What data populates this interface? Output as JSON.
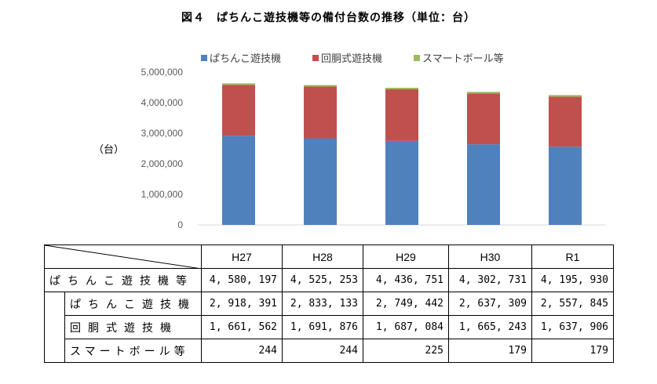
{
  "title": "図４　ぱちんこ遊技機等の備付台数の推移（単位：台）",
  "chart_data": {
    "type": "bar",
    "stacked": true,
    "categories": [
      "H27",
      "H28",
      "H29",
      "H30",
      "R1"
    ],
    "series": [
      {
        "name": "ぱちんこ遊技機",
        "color": "#4F81BD",
        "values": [
          2918391,
          2833133,
          2749442,
          2637309,
          2557845
        ]
      },
      {
        "name": "回胴式遊技機",
        "color": "#C0504D",
        "values": [
          1661562,
          1691876,
          1687084,
          1665243,
          1637906
        ]
      },
      {
        "name": "スマートボール等",
        "color": "#9BBB59",
        "values": [
          244,
          244,
          225,
          179,
          179
        ]
      }
    ],
    "ylabel": "（台）",
    "ylim": [
      0,
      5000000
    ],
    "yticks": [
      "0",
      "1,000,000",
      "2,000,000",
      "3,000,000",
      "4,000,000",
      "5,000,000"
    ],
    "legend": "top",
    "grid": false
  },
  "table": {
    "headers": [
      "H27",
      "H28",
      "H29",
      "H30",
      "R1"
    ],
    "rows": [
      {
        "label": "ぱちんこ遊技機等",
        "values": [
          "4, 580, 197",
          "4, 525, 253",
          "4, 436, 751",
          "4, 302, 731",
          "4, 195, 930"
        ]
      },
      {
        "label": "ぱちんこ遊技機",
        "values": [
          "2, 918, 391",
          "2, 833, 133",
          "2, 749, 442",
          "2, 637, 309",
          "2, 557, 845"
        ]
      },
      {
        "label": "回胴式遊技機",
        "values": [
          "1, 661, 562",
          "1, 691, 876",
          "1, 687, 084",
          "1, 665, 243",
          "1, 637, 906"
        ]
      },
      {
        "label": "スマートボール等",
        "values": [
          "244",
          "244",
          "225",
          "179",
          "179"
        ]
      }
    ]
  }
}
